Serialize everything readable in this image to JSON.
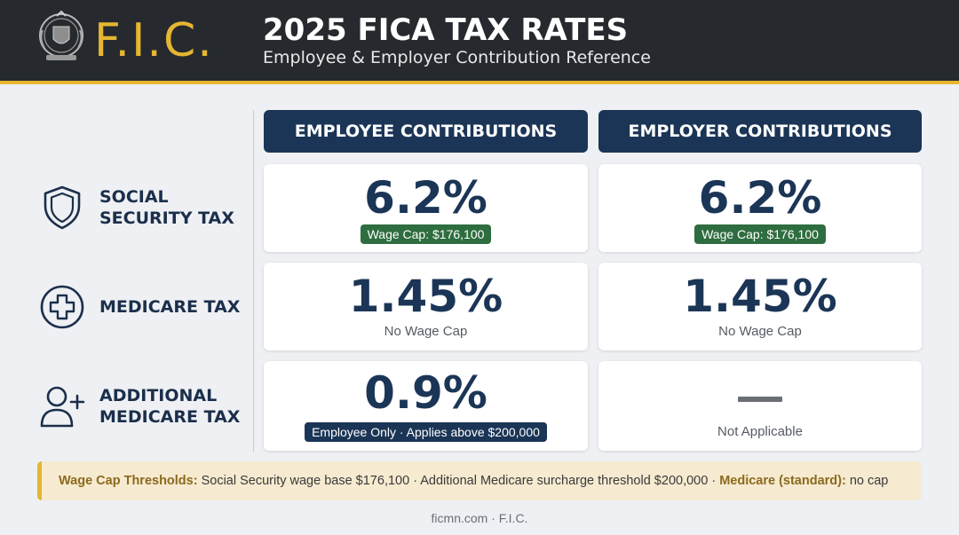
{
  "header": {
    "brand": "F.I.C.",
    "title": "2025 FICA TAX RATES",
    "subtitle": "Employee & Employer Contribution Reference",
    "brand_color": "#e6b631",
    "background_color": "#262a2f"
  },
  "columns": {
    "employee": "EMPLOYEE CONTRIBUTIONS",
    "employer": "EMPLOYER CONTRIBUTIONS"
  },
  "rows": [
    {
      "label": "SOCIAL\nSECURITY TAX",
      "icon": "shield-icon",
      "employee": {
        "rate": "6.2%",
        "note": "Wage Cap: $176,100"
      },
      "employer": {
        "rate": "6.2%",
        "note": "Wage Cap: $176,100"
      }
    },
    {
      "label": "MEDICARE TAX",
      "icon": "medical-cross-icon",
      "employee": {
        "rate": "1.45%",
        "note": "No Wage Cap"
      },
      "employer": {
        "rate": "1.45%",
        "note": "No Wage Cap"
      }
    },
    {
      "label": "ADDITIONAL\nMEDICARE TAX",
      "icon": "add-user-icon",
      "employee": {
        "rate": "0.9%",
        "note": "Employee Only · Applies above $200,000"
      },
      "employer": {
        "rate": "—",
        "note": "Not Applicable"
      }
    }
  ],
  "thresholds": {
    "label": "Wage Cap Thresholds:",
    "text": " Social Security wage base $176,100 · Additional Medicare surcharge threshold $200,000 · ",
    "medicare_label": "Medicare (standard):",
    "medicare_text": " no cap"
  },
  "footer": "ficmn.com · F.I.C.",
  "colors": {
    "navy": "#1b3556",
    "wage_cap_green": "#2e6d3f",
    "accent_gold": "#e6b631"
  }
}
